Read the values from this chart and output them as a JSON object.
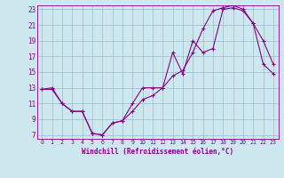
{
  "xlabel": "Windchill (Refroidissement éolien,°C)",
  "bg_color": "#cce8ee",
  "line_color": "#880088",
  "grid_color": "#99bbcc",
  "xlim": [
    -0.5,
    23.5
  ],
  "ylim": [
    6.5,
    23.5
  ],
  "yticks": [
    7,
    9,
    11,
    13,
    15,
    17,
    19,
    21,
    23
  ],
  "xticks": [
    0,
    1,
    2,
    3,
    4,
    5,
    6,
    7,
    8,
    9,
    10,
    11,
    12,
    13,
    14,
    15,
    16,
    17,
    18,
    19,
    20,
    21,
    22,
    23
  ],
  "line1_x": [
    0,
    1,
    2,
    3,
    4,
    5,
    6,
    7,
    8,
    9,
    10,
    11,
    12,
    13,
    14,
    15,
    16,
    17,
    18,
    19,
    20,
    21,
    22,
    23
  ],
  "line1_y": [
    12.8,
    13.0,
    11.0,
    10.0,
    10.0,
    7.2,
    7.0,
    8.5,
    8.8,
    11.0,
    13.0,
    13.0,
    13.0,
    17.5,
    14.8,
    19.0,
    17.5,
    18.0,
    23.0,
    23.2,
    22.8,
    21.2,
    19.0,
    16.0
  ],
  "line2_x": [
    0,
    1,
    2,
    3,
    4,
    5,
    6,
    7,
    8,
    9,
    10,
    11,
    12,
    13,
    14,
    15,
    16,
    17,
    18,
    19,
    20,
    21,
    22,
    23
  ],
  "line2_y": [
    12.8,
    12.8,
    11.0,
    10.0,
    10.0,
    7.2,
    7.0,
    8.5,
    8.8,
    10.0,
    11.5,
    12.0,
    13.0,
    14.5,
    15.2,
    17.5,
    20.5,
    22.8,
    23.2,
    23.5,
    23.0,
    21.2,
    16.0,
    14.8
  ],
  "tick_fontsize": 5.5,
  "xlabel_fontsize": 5.5
}
